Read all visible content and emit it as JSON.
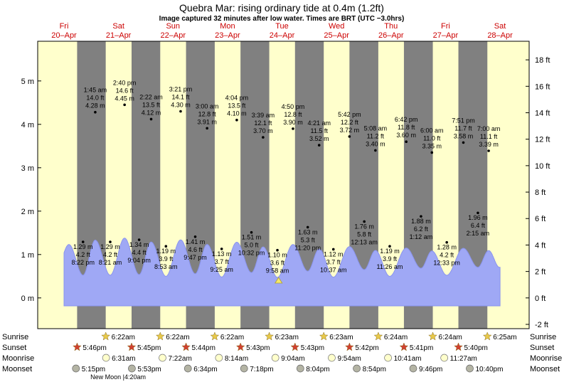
{
  "title": "Quebra Mar: rising  ordinary tide at 0.4m (1.2ft)",
  "subtitle": "Image captured 32 minutes after low water. Times are BRT (UTC −3.0hrs)",
  "colors": {
    "day": "#ffffcc",
    "night": "#808080",
    "water": "#9fa8f5",
    "water_stroke": "#8a94ee",
    "date_label": "#cc0000",
    "marker": "#000000",
    "star": "#e8c94a",
    "sunset_star": "#d04030",
    "moonrise": "#ffffcc",
    "moonset": "#b4b4a4"
  },
  "chart_data": {
    "type": "area",
    "ylabel_left": "m",
    "ylabel_right": "ft",
    "ylim_m": [
      -0.2,
      5.8
    ],
    "y_ticks_m": [
      "0 m",
      "1 m",
      "2 m",
      "3 m",
      "4 m",
      "5 m"
    ],
    "y_ticks_ft": [
      "-2 ft",
      "0 ft",
      "2 ft",
      "4 ft",
      "6 ft",
      "8 ft",
      "10 ft",
      "12 ft",
      "14 ft",
      "16 ft",
      "18 ft"
    ],
    "days": [
      {
        "dow": "Fri",
        "date": "20–Apr"
      },
      {
        "dow": "Sat",
        "date": "21–Apr"
      },
      {
        "dow": "Sun",
        "date": "22–Apr"
      },
      {
        "dow": "Mon",
        "date": "23–Apr"
      },
      {
        "dow": "Tue",
        "date": "24–Apr"
      },
      {
        "dow": "Wed",
        "date": "25–Apr"
      },
      {
        "dow": "Thu",
        "date": "26–Apr"
      },
      {
        "dow": "Fri",
        "date": "27–Apr"
      },
      {
        "dow": "Sat",
        "date": "28–Apr"
      }
    ],
    "high_tides": [
      {
        "time": "1:45 am",
        "ft": "14.0 ft",
        "m": "4.28 m",
        "h": 25.75,
        "v": 4.28
      },
      {
        "time": "2:40 pm",
        "ft": "14.6 ft",
        "m": "4.45 m",
        "h": 38.67,
        "v": 4.45
      },
      {
        "time": "2:22 am",
        "ft": "13.5 ft",
        "m": "4.12 m",
        "h": 50.37,
        "v": 4.12
      },
      {
        "time": "3:21 pm",
        "ft": "14.1 ft",
        "m": "4.30 m",
        "h": 63.35,
        "v": 4.3
      },
      {
        "time": "3:00 am",
        "ft": "12.8 ft",
        "m": "3.91 m",
        "h": 75.0,
        "v": 3.91
      },
      {
        "time": "4:04 pm",
        "ft": "13.5 ft",
        "m": "4.10 m",
        "h": 88.07,
        "v": 4.1
      },
      {
        "time": "3:39 am",
        "ft": "12.1 ft",
        "m": "3.70 m",
        "h": 99.65,
        "v": 3.7
      },
      {
        "time": "4:50 pm",
        "ft": "12.8 ft",
        "m": "3.90 m",
        "h": 112.83,
        "v": 3.9
      },
      {
        "time": "4:21 am",
        "ft": "11.5 ft",
        "m": "3.52 m",
        "h": 124.35,
        "v": 3.52
      },
      {
        "time": "5:42 pm",
        "ft": "12.2 ft",
        "m": "3.72 m",
        "h": 137.7,
        "v": 3.72
      },
      {
        "time": "5:08 am",
        "ft": "11.2 ft",
        "m": "3.40 m",
        "h": 149.13,
        "v": 3.4
      },
      {
        "time": "6:42 pm",
        "ft": "11.8 ft",
        "m": "3.60 m",
        "h": 162.7,
        "v": 3.6
      },
      {
        "time": "6:00 am",
        "ft": "11.0 ft",
        "m": "3.35 m",
        "h": 174.0,
        "v": 3.35
      },
      {
        "time": "7:51 pm",
        "ft": "11.7 ft",
        "m": "3.58 m",
        "h": 187.85,
        "v": 3.58
      },
      {
        "time": "7:00 am",
        "ft": "11.1 ft",
        "m": "3.39 m",
        "h": 199.0,
        "v": 3.39
      }
    ],
    "low_tides": [
      {
        "time": "8:22 pm",
        "ft": "4.2 ft",
        "m": "1.29 m",
        "h": 20.37,
        "v": 1.29
      },
      {
        "time": "8:21 am",
        "ft": "4.2 ft",
        "m": "1.29 m",
        "h": 32.35,
        "v": 1.29
      },
      {
        "time": "9:04 pm",
        "ft": "4.4 ft",
        "m": "1.34 m",
        "h": 45.07,
        "v": 1.34
      },
      {
        "time": "8:53 am",
        "ft": "3.9 ft",
        "m": "1.19 m",
        "h": 56.88,
        "v": 1.19
      },
      {
        "time": "9:47 pm",
        "ft": "4.6 ft",
        "m": "1.41 m",
        "h": 69.78,
        "v": 1.41
      },
      {
        "time": "9:25 am",
        "ft": "3.7 ft",
        "m": "1.13 m",
        "h": 81.42,
        "v": 1.13
      },
      {
        "time": "10:32 pm",
        "ft": "5.0 ft",
        "m": "1.51 m",
        "h": 94.53,
        "v": 1.51
      },
      {
        "time": "9:58 am",
        "ft": "3.6 ft",
        "m": "1.10 m",
        "h": 105.97,
        "v": 1.1
      },
      {
        "time": "11:20 pm",
        "ft": "5.3 ft",
        "m": "1.63 m",
        "h": 119.33,
        "v": 1.63
      },
      {
        "time": "10:37 am",
        "ft": "3.7 ft",
        "m": "1.12 m",
        "h": 130.62,
        "v": 1.12
      },
      {
        "time": "12:13 am",
        "ft": "5.8 ft",
        "m": "1.76 m",
        "h": 144.22,
        "v": 1.76
      },
      {
        "time": "11:26 am",
        "ft": "3.9 ft",
        "m": "1.19 m",
        "h": 155.43,
        "v": 1.19
      },
      {
        "time": "1:12 am",
        "ft": "6.2 ft",
        "m": "1.88 m",
        "h": 169.2,
        "v": 1.88
      },
      {
        "time": "12:33 pm",
        "ft": "4.2 ft",
        "m": "1.28 m",
        "h": 180.55,
        "v": 1.28
      },
      {
        "time": "2:15 am",
        "ft": "6.4 ft",
        "m": "1.96 m",
        "h": 194.25,
        "v": 1.96
      }
    ],
    "current_level_m": 0.4,
    "current_h": 106.5,
    "timeline": {
      "start_h": 12.0,
      "end_h": 204.0,
      "first_sunrise_h": 30.37,
      "first_sunset_h": 41.77
    }
  },
  "events": {
    "labels": {
      "sunrise": "Sunrise",
      "sunset": "Sunset",
      "moonrise": "Moonrise",
      "moonset": "Moonset"
    },
    "sunrise": [
      {
        "time": "6:22am",
        "h": 30.37
      },
      {
        "time": "6:22am",
        "h": 54.37
      },
      {
        "time": "6:22am",
        "h": 78.37
      },
      {
        "time": "6:23am",
        "h": 102.38
      },
      {
        "time": "6:23am",
        "h": 126.38
      },
      {
        "time": "6:24am",
        "h": 150.4
      },
      {
        "time": "6:24am",
        "h": 174.4
      },
      {
        "time": "6:25am",
        "h": 198.42
      }
    ],
    "sunset": [
      {
        "time": "5:46pm",
        "h": 17.77
      },
      {
        "time": "5:45pm",
        "h": 41.75
      },
      {
        "time": "5:44pm",
        "h": 65.73
      },
      {
        "time": "5:43pm",
        "h": 89.72
      },
      {
        "time": "5:43pm",
        "h": 113.72
      },
      {
        "time": "5:42pm",
        "h": 137.7
      },
      {
        "time": "5:41pm",
        "h": 161.68
      },
      {
        "time": "5:40pm",
        "h": 185.67
      }
    ],
    "moonrise": [
      {
        "time": "6:31am",
        "h": 30.52
      },
      {
        "time": "7:22am",
        "h": 55.37
      },
      {
        "time": "8:14am",
        "h": 80.23
      },
      {
        "time": "9:04am",
        "h": 105.07
      },
      {
        "time": "9:54am",
        "h": 129.9
      },
      {
        "time": "10:41am",
        "h": 154.68
      },
      {
        "time": "11:27am",
        "h": 179.45
      }
    ],
    "moonset": [
      {
        "time": "5:15pm",
        "h": 17.25
      },
      {
        "time": "5:53pm",
        "h": 41.88
      },
      {
        "time": "6:34pm",
        "h": 66.57
      },
      {
        "time": "7:18pm",
        "h": 91.3
      },
      {
        "time": "8:04pm",
        "h": 116.07
      },
      {
        "time": "8:54pm",
        "h": 140.9
      },
      {
        "time": "9:46pm",
        "h": 165.77
      },
      {
        "time": "10:40pm",
        "h": 190.67
      }
    ],
    "new_moon": {
      "label": "New Moon",
      "time": "4:20am",
      "h": 28.33
    }
  }
}
